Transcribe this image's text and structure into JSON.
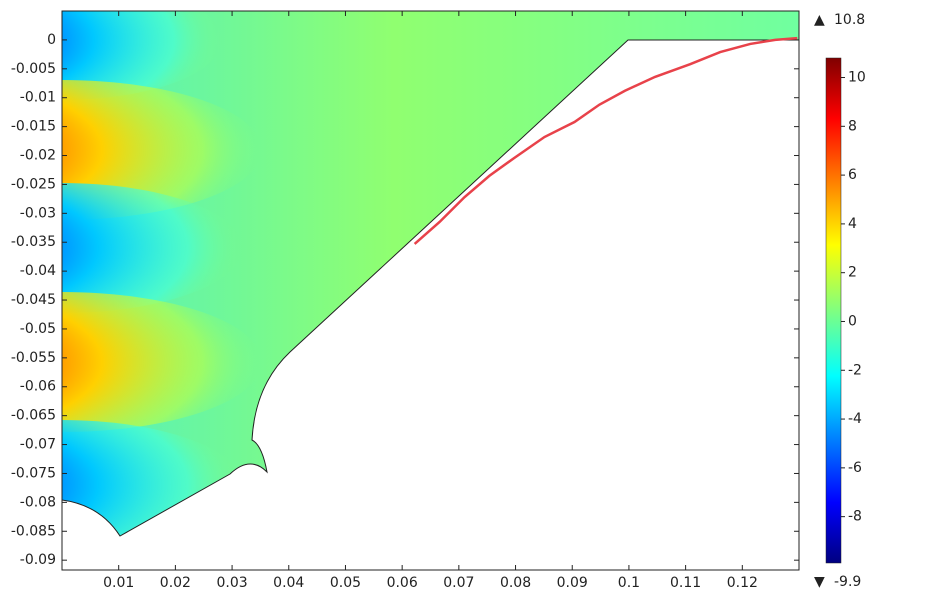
{
  "chart_data": {
    "type": "line",
    "x": [
      0.0622,
      0.0666,
      0.071,
      0.0754,
      0.0798,
      0.0851,
      0.0904,
      0.0948,
      0.0993,
      0.1046,
      0.1108,
      0.1161,
      0.1214,
      0.1258,
      0.1297
    ],
    "series": [
      {
        "color": "#e8424a",
        "values": [
          -0.0353,
          -0.0315,
          -0.0272,
          -0.0235,
          -0.0204,
          -0.0168,
          -0.0142,
          -0.0112,
          -0.0088,
          -0.0064,
          -0.0042,
          -0.0021,
          -0.0007,
          0,
          0.0003
        ]
      }
    ],
    "xlim": [
      0,
      0.13
    ],
    "ylim": [
      -0.0917,
      0.005
    ],
    "xticks": [
      0.01,
      0.02,
      0.03,
      0.04,
      0.05,
      0.06,
      0.07,
      0.08,
      0.09,
      0.1,
      0.11,
      0.12
    ],
    "yticks": [
      0,
      -0.005,
      -0.01,
      -0.015,
      -0.02,
      -0.025,
      -0.03,
      -0.035,
      -0.04,
      -0.045,
      -0.05,
      -0.055,
      -0.06,
      -0.065,
      -0.07,
      -0.075,
      -0.08,
      -0.085,
      -0.09
    ],
    "colorbar": {
      "clim": [
        -9.9,
        10.8
      ],
      "ticks": [
        -8,
        -6,
        -4,
        -2,
        0,
        2,
        4,
        6,
        8,
        10
      ]
    }
  }
}
